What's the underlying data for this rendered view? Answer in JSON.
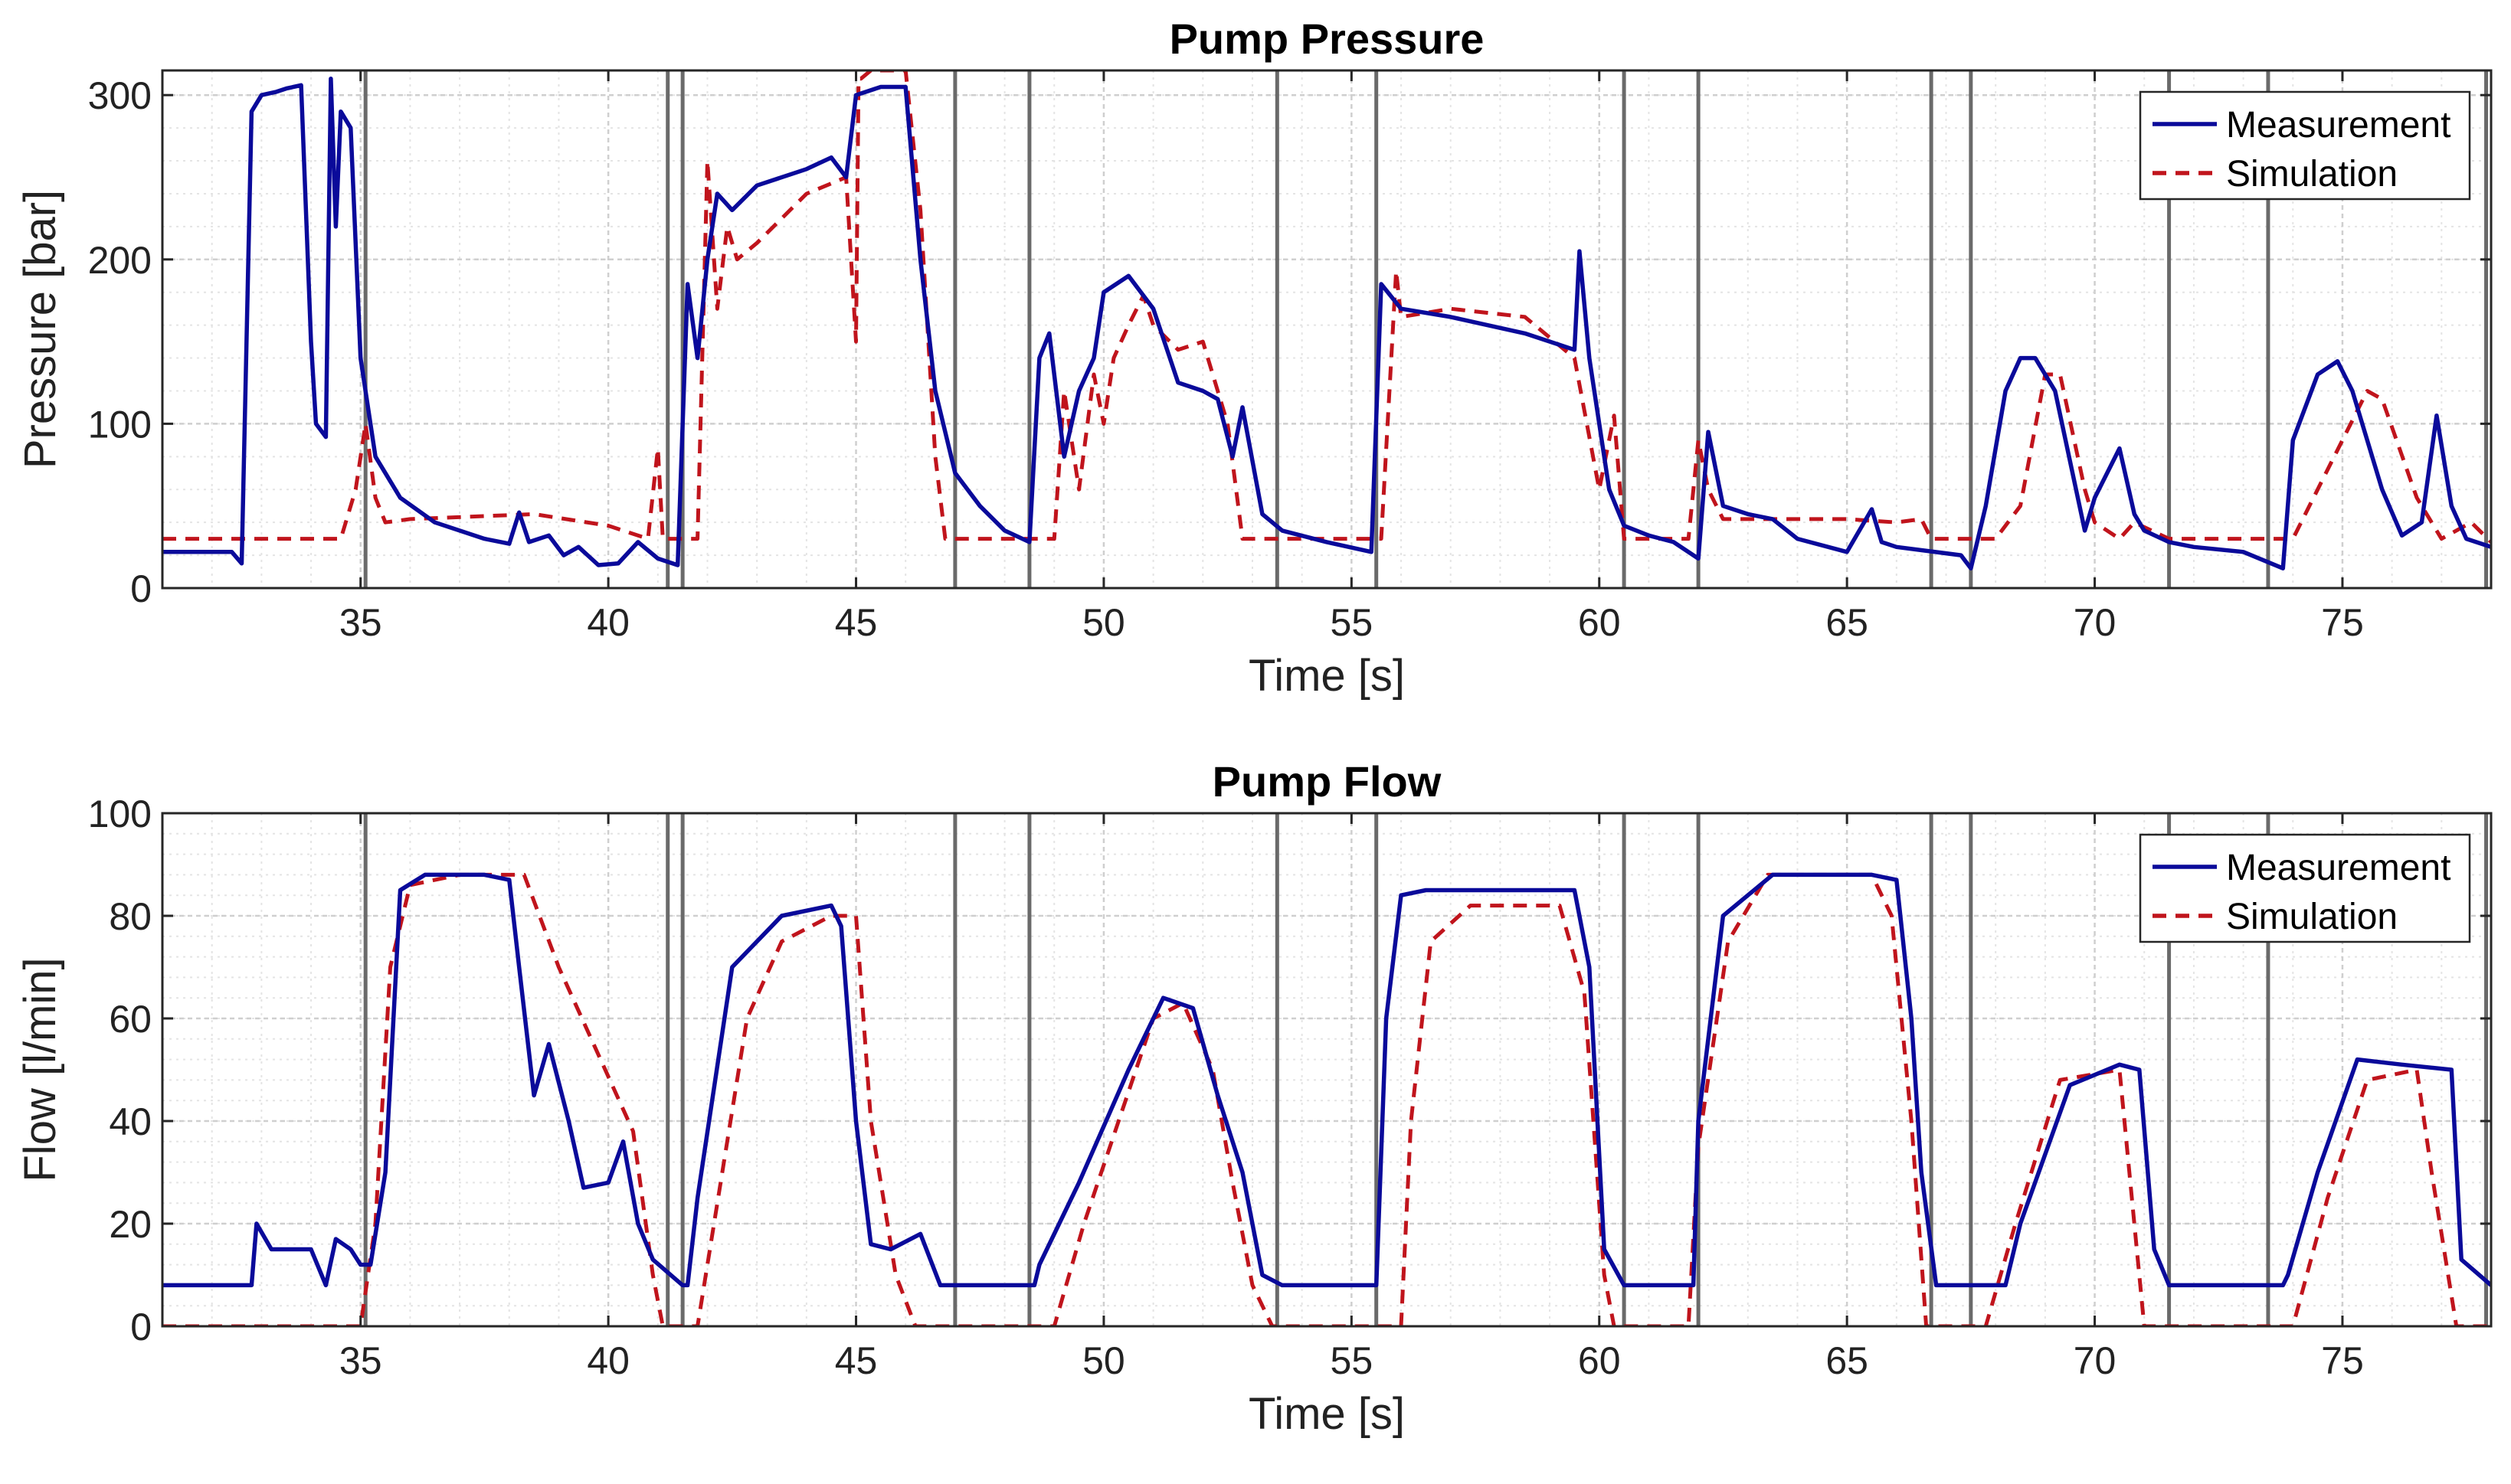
{
  "chart_data": [
    {
      "type": "line",
      "title": "Pump Pressure",
      "xlabel": "Time [s]",
      "ylabel": "Pressure [bar]",
      "xlim": [
        31,
        78
      ],
      "ylim": [
        0,
        315
      ],
      "xticks": [
        35,
        40,
        45,
        50,
        55,
        60,
        65,
        70,
        75
      ],
      "yticks": [
        0,
        100,
        200,
        300
      ],
      "xtick_labels": [
        "35",
        "40",
        "45",
        "50",
        "55",
        "60",
        "65",
        "70",
        "75"
      ],
      "ytick_labels": [
        "0",
        "100",
        "200",
        "300"
      ],
      "grid": true,
      "legend": {
        "position": "top-right",
        "entries": [
          "Measurement",
          "Simulation"
        ]
      },
      "event_lines": [
        35.1,
        41.2,
        41.5,
        47.0,
        48.5,
        53.5,
        55.5,
        60.5,
        62.0,
        66.7,
        67.5,
        71.5,
        73.5,
        77.9
      ],
      "series": [
        {
          "name": "Measurement",
          "color": "#0a0a9a",
          "style": "solid",
          "x": [
            31.0,
            32.4,
            32.6,
            32.8,
            33.0,
            33.3,
            33.5,
            33.8,
            34.0,
            34.1,
            34.3,
            34.4,
            34.5,
            34.6,
            34.8,
            35.0,
            35.3,
            35.8,
            36.5,
            37.5,
            38.0,
            38.2,
            38.4,
            38.8,
            39.1,
            39.4,
            39.8,
            40.2,
            40.6,
            41.0,
            41.4,
            41.6,
            41.8,
            42.0,
            42.2,
            42.5,
            43.0,
            44.0,
            44.5,
            44.8,
            45.0,
            45.5,
            46.0,
            46.3,
            46.6,
            47.0,
            47.5,
            48.0,
            48.5,
            48.7,
            48.9,
            49.2,
            49.5,
            49.8,
            50.0,
            50.5,
            51.0,
            51.5,
            52.0,
            52.3,
            52.6,
            52.8,
            53.2,
            53.6,
            54.5,
            55.4,
            55.6,
            56.0,
            57.0,
            58.5,
            59.5,
            59.6,
            59.8,
            60.2,
            60.5,
            61.0,
            61.5,
            62.0,
            62.2,
            62.5,
            63.0,
            63.5,
            64.0,
            65.0,
            65.5,
            65.7,
            66.0,
            67.3,
            67.5,
            67.8,
            68.2,
            68.5,
            68.8,
            69.2,
            69.8,
            70.0,
            70.5,
            70.8,
            71.0,
            71.5,
            72.0,
            73.0,
            73.8,
            74.0,
            74.5,
            74.9,
            75.2,
            75.8,
            76.2,
            76.6,
            76.9,
            77.2,
            77.5,
            78.0
          ],
          "y": [
            22,
            22,
            15,
            290,
            300,
            302,
            304,
            306,
            150,
            100,
            92,
            310,
            220,
            290,
            280,
            140,
            80,
            55,
            40,
            30,
            27,
            46,
            28,
            32,
            20,
            25,
            14,
            15,
            28,
            18,
            14,
            185,
            140,
            200,
            240,
            230,
            245,
            255,
            262,
            250,
            300,
            305,
            305,
            200,
            120,
            70,
            50,
            35,
            28,
            140,
            155,
            80,
            120,
            140,
            180,
            190,
            170,
            125,
            120,
            115,
            80,
            110,
            45,
            35,
            28,
            22,
            185,
            170,
            165,
            155,
            145,
            205,
            140,
            60,
            38,
            32,
            28,
            18,
            95,
            50,
            45,
            42,
            30,
            22,
            48,
            28,
            25,
            20,
            12,
            50,
            120,
            140,
            140,
            120,
            35,
            55,
            85,
            45,
            35,
            28,
            25,
            22,
            12,
            90,
            130,
            138,
            120,
            60,
            32,
            40,
            105,
            50,
            30,
            25
          ]
        },
        {
          "name": "Simulation",
          "color": "#c0141c",
          "style": "dashed",
          "x": [
            31.0,
            34.6,
            34.9,
            35.1,
            35.3,
            35.5,
            36.0,
            38.5,
            40.0,
            40.8,
            41.0,
            41.1,
            41.4,
            41.6,
            41.8,
            42.0,
            42.2,
            42.4,
            42.6,
            43.0,
            44.0,
            44.8,
            45.0,
            45.05,
            45.1,
            45.3,
            46.0,
            46.3,
            46.6,
            46.8,
            47.0,
            48.0,
            48.5,
            49.0,
            49.2,
            49.5,
            49.8,
            50.0,
            50.2,
            50.5,
            50.8,
            51.0,
            51.5,
            52.0,
            52.5,
            52.8,
            53.5,
            55.2,
            55.6,
            55.9,
            56.0,
            57.0,
            58.5,
            59.5,
            60.0,
            60.3,
            60.5,
            61.0,
            61.8,
            62.0,
            62.2,
            62.5,
            63.0,
            65.0,
            66.0,
            66.5,
            66.7,
            67.5,
            68.0,
            68.5,
            69.0,
            69.3,
            69.8,
            70.0,
            70.5,
            70.8,
            71.5,
            73.8,
            74.0,
            74.5,
            75.5,
            75.8,
            76.5,
            77.0,
            77.6,
            78.0
          ],
          "y": [
            30,
            30,
            60,
            100,
            55,
            40,
            42,
            45,
            38,
            30,
            85,
            30,
            30,
            30,
            30,
            260,
            170,
            220,
            200,
            210,
            240,
            250,
            150,
            310,
            310,
            315,
            315,
            230,
            80,
            30,
            30,
            30,
            30,
            30,
            120,
            60,
            130,
            100,
            140,
            160,
            178,
            160,
            145,
            150,
            100,
            30,
            30,
            30,
            30,
            193,
            165,
            170,
            165,
            140,
            60,
            105,
            30,
            30,
            30,
            90,
            60,
            42,
            42,
            42,
            40,
            42,
            30,
            30,
            30,
            50,
            130,
            130,
            60,
            40,
            30,
            40,
            30,
            30,
            30,
            60,
            120,
            115,
            55,
            30,
            40,
            28
          ]
        }
      ]
    },
    {
      "type": "line",
      "title": "Pump Flow",
      "xlabel": "Time [s]",
      "ylabel": "Flow [l/min]",
      "xlim": [
        31,
        78
      ],
      "ylim": [
        0,
        100
      ],
      "xticks": [
        35,
        40,
        45,
        50,
        55,
        60,
        65,
        70,
        75
      ],
      "yticks": [
        0,
        20,
        40,
        60,
        80,
        100
      ],
      "xtick_labels": [
        "35",
        "40",
        "45",
        "50",
        "55",
        "60",
        "65",
        "70",
        "75"
      ],
      "ytick_labels": [
        "0",
        "20",
        "40",
        "60",
        "80",
        "100"
      ],
      "grid": true,
      "legend": {
        "position": "top-right",
        "entries": [
          "Measurement",
          "Simulation"
        ]
      },
      "event_lines": [
        35.1,
        41.2,
        41.5,
        47.0,
        48.5,
        53.5,
        55.5,
        60.5,
        62.0,
        66.7,
        67.5,
        71.5,
        73.5,
        77.9
      ],
      "series": [
        {
          "name": "Measurement",
          "color": "#0a0a9a",
          "style": "solid",
          "x": [
            31.0,
            32.8,
            32.9,
            33.2,
            33.5,
            34.0,
            34.3,
            34.5,
            34.8,
            35.0,
            35.2,
            35.5,
            35.8,
            36.3,
            37.5,
            38.0,
            38.2,
            38.5,
            38.8,
            39.2,
            39.5,
            40.0,
            40.3,
            40.6,
            40.9,
            41.5,
            41.6,
            41.8,
            42.5,
            43.5,
            44.5,
            44.7,
            45.0,
            45.3,
            45.7,
            46.3,
            46.7,
            47.0,
            48.6,
            48.7,
            49.5,
            50.5,
            51.2,
            51.8,
            52.3,
            52.8,
            53.2,
            53.6,
            55.5,
            55.7,
            56.0,
            56.5,
            58.5,
            59.5,
            59.8,
            60.1,
            60.5,
            61.9,
            62.0,
            62.5,
            63.5,
            65.5,
            66.0,
            66.3,
            66.5,
            66.8,
            68.2,
            68.5,
            69.5,
            70.5,
            70.9,
            71.2,
            71.5,
            73.8,
            73.9,
            74.5,
            75.3,
            76.2,
            77.2,
            77.4,
            78.0
          ],
          "y": [
            8,
            8,
            20,
            15,
            15,
            15,
            8,
            17,
            15,
            12,
            12,
            30,
            85,
            88,
            88,
            87,
            70,
            45,
            55,
            40,
            27,
            28,
            36,
            20,
            13,
            8,
            8,
            25,
            70,
            80,
            82,
            78,
            40,
            16,
            15,
            18,
            8,
            8,
            8,
            12,
            28,
            50,
            64,
            62,
            45,
            30,
            10,
            8,
            8,
            60,
            84,
            85,
            85,
            85,
            70,
            15,
            8,
            8,
            40,
            80,
            88,
            88,
            87,
            60,
            30,
            8,
            8,
            20,
            47,
            51,
            50,
            15,
            8,
            8,
            10,
            30,
            52,
            51,
            50,
            13,
            8
          ]
        },
        {
          "name": "Simulation",
          "color": "#c0141c",
          "style": "dashed",
          "x": [
            31.0,
            35.0,
            35.3,
            35.6,
            36.0,
            37.0,
            38.3,
            39.0,
            40.5,
            40.9,
            41.1,
            41.8,
            42.3,
            42.8,
            43.5,
            44.5,
            45.0,
            45.3,
            45.8,
            46.2,
            49.0,
            49.6,
            50.3,
            51.0,
            51.6,
            52.2,
            52.6,
            53.0,
            53.4,
            56.0,
            56.2,
            56.6,
            57.4,
            59.2,
            59.7,
            60.1,
            60.3,
            61.8,
            62.0,
            62.6,
            63.4,
            65.5,
            65.9,
            66.3,
            66.6,
            67.8,
            68.4,
            69.3,
            70.5,
            70.7,
            71.0,
            74.0,
            74.7,
            75.5,
            76.5,
            76.8,
            77.3,
            78.0
          ],
          "y": [
            0,
            0,
            20,
            70,
            86,
            88,
            88,
            70,
            38,
            10,
            0,
            0,
            30,
            60,
            75,
            80,
            80,
            40,
            10,
            0,
            0,
            20,
            40,
            60,
            63,
            50,
            28,
            8,
            0,
            0,
            40,
            75,
            82,
            82,
            65,
            10,
            0,
            0,
            35,
            75,
            88,
            88,
            80,
            40,
            0,
            0,
            20,
            48,
            50,
            30,
            0,
            0,
            25,
            48,
            50,
            30,
            0,
            0
          ]
        }
      ]
    }
  ]
}
